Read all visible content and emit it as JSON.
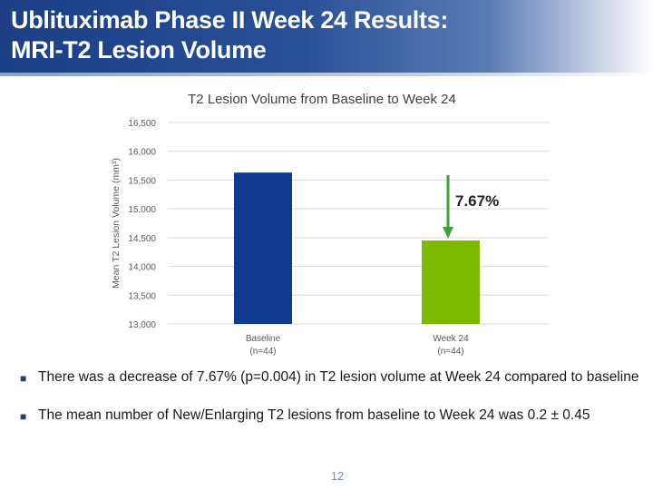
{
  "slide": {
    "title_line1": "Ublituximab Phase II Week 24 Results:",
    "title_line2": "MRI-T2 Lesion Volume",
    "page_number": "12"
  },
  "chart_data": {
    "type": "bar",
    "title": "T2 Lesion Volume from Baseline to Week 24",
    "ylabel": "Mean T2 Lesion Volume (mm³)",
    "xlabel": "",
    "categories": [
      "Baseline",
      "Week 24"
    ],
    "category_notes": [
      "(n=44)",
      "(n=44)"
    ],
    "values": [
      15630,
      14450
    ],
    "colors": [
      "#0f3a8f",
      "#7dba00"
    ],
    "ylim": [
      13000,
      16500
    ],
    "yticks": [
      "13,000",
      "13,500",
      "14,000",
      "14,500",
      "15,000",
      "15,500",
      "16,000",
      "16,500"
    ],
    "grid": true,
    "annotation": {
      "text": "7.67%",
      "arrow_color": "#3aa534"
    }
  },
  "bullets": [
    "There was a decrease of 7.67% (p=0.004) in T2 lesion volume at Week 24 compared to baseline",
    "The mean number of New/Enlarging T2 lesions from baseline to Week 24 was 0.2 ± 0.45"
  ],
  "colors": {
    "accent": "#1c3f86",
    "baseline_bar": "#0f3a8f",
    "week24_bar": "#7dba00",
    "arrow": "#3aa534"
  }
}
